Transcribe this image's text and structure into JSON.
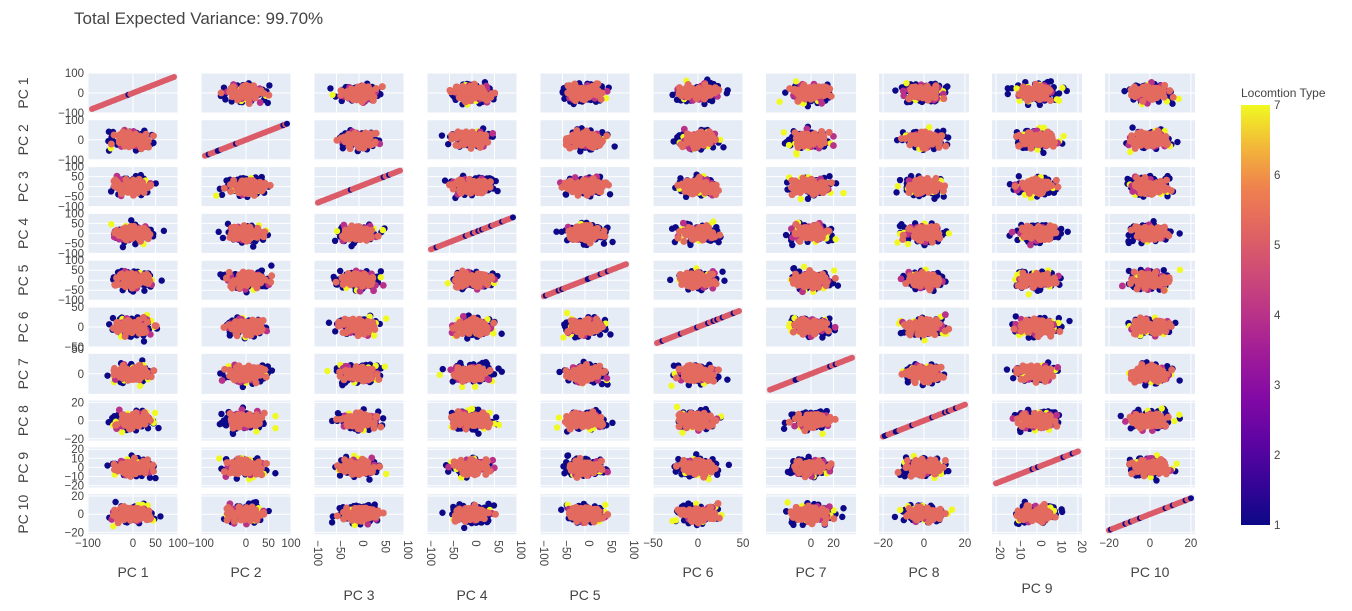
{
  "chart_data": {
    "type": "scatter",
    "title": "Total Expected Variance: 99.70%",
    "dimensions": [
      "PC 1",
      "PC 2",
      "PC 3",
      "PC 4",
      "PC 5",
      "PC 6",
      "PC 7",
      "PC 8",
      "PC 9",
      "PC 10"
    ],
    "ranges": [
      [
        -100,
        100
      ],
      [
        -100,
        100
      ],
      [
        -100,
        100
      ],
      [
        -100,
        100
      ],
      [
        -100,
        100
      ],
      [
        -50,
        50
      ],
      [
        -40,
        40
      ],
      [
        -22,
        22
      ],
      [
        -22,
        22
      ],
      [
        -22,
        22
      ]
    ],
    "y_ticks": [
      [
        "100",
        "0",
        "−100"
      ],
      [
        "100",
        "0",
        "−100"
      ],
      [
        "100",
        "50",
        "0",
        "−50",
        "−100"
      ],
      [
        "100",
        "50",
        "0",
        "−50",
        "−100"
      ],
      [
        "100",
        "50",
        "0",
        "−50",
        "−100"
      ],
      [
        "50",
        "0",
        "−50"
      ],
      [
        "50",
        "0"
      ],
      [
        "20",
        "0",
        "−20"
      ],
      [
        "20",
        "10",
        "0",
        "−10",
        "−20"
      ],
      [
        "20",
        "0",
        "−20"
      ]
    ],
    "x_ticks": [
      [
        "−100",
        "0",
        "50",
        "100"
      ],
      [
        "−100",
        "0",
        "50",
        "100"
      ],
      [
        "−100",
        "−50",
        "0",
        "50",
        "100"
      ],
      [
        "−100",
        "−50",
        "0",
        "50",
        "100"
      ],
      [
        "−100",
        "−50",
        "0",
        "50",
        "100"
      ],
      [
        "−50",
        "0",
        "50"
      ],
      [
        "0",
        "20"
      ],
      [
        "−20",
        "0",
        "20"
      ],
      [
        "−20",
        "−10",
        "0",
        "10",
        "20"
      ],
      [
        "−20",
        "0",
        "20"
      ]
    ],
    "colorbar": {
      "title": "Locomtion Type",
      "min": 1,
      "max": 7,
      "ticks": [
        "7",
        "6",
        "5",
        "4",
        "3",
        "2",
        "1"
      ],
      "colorscale": "plasma"
    },
    "grid": true
  }
}
